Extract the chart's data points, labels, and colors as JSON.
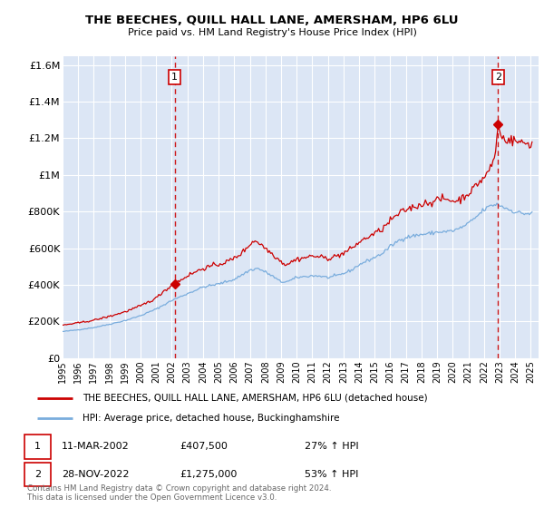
{
  "title": "THE BEECHES, QUILL HALL LANE, AMERSHAM, HP6 6LU",
  "subtitle": "Price paid vs. HM Land Registry's House Price Index (HPI)",
  "bg_color": "#dce6f5",
  "red_line_color": "#cc0000",
  "blue_line_color": "#7aaddd",
  "dashed_line_color": "#cc0000",
  "ylim": [
    0,
    1650000
  ],
  "yticks": [
    0,
    200000,
    400000,
    600000,
    800000,
    1000000,
    1200000,
    1400000,
    1600000
  ],
  "ytick_labels": [
    "£0",
    "£200K",
    "£400K",
    "£600K",
    "£800K",
    "£1M",
    "£1.2M",
    "£1.4M",
    "£1.6M"
  ],
  "marker1_date": 2002.19,
  "marker1_value": 407500,
  "marker2_date": 2022.91,
  "marker2_value": 1275000,
  "legend_red": "THE BEECHES, QUILL HALL LANE, AMERSHAM, HP6 6LU (detached house)",
  "legend_blue": "HPI: Average price, detached house, Buckinghamshire",
  "copyright": "Contains HM Land Registry data © Crown copyright and database right 2024.\nThis data is licensed under the Open Government Licence v3.0.",
  "xlim_left": 1995.0,
  "xlim_right": 2025.5,
  "xticks": [
    1995,
    1996,
    1997,
    1998,
    1999,
    2000,
    2001,
    2002,
    2003,
    2004,
    2005,
    2006,
    2007,
    2008,
    2009,
    2010,
    2011,
    2012,
    2013,
    2014,
    2015,
    2016,
    2017,
    2018,
    2019,
    2020,
    2021,
    2022,
    2023,
    2024,
    2025
  ]
}
